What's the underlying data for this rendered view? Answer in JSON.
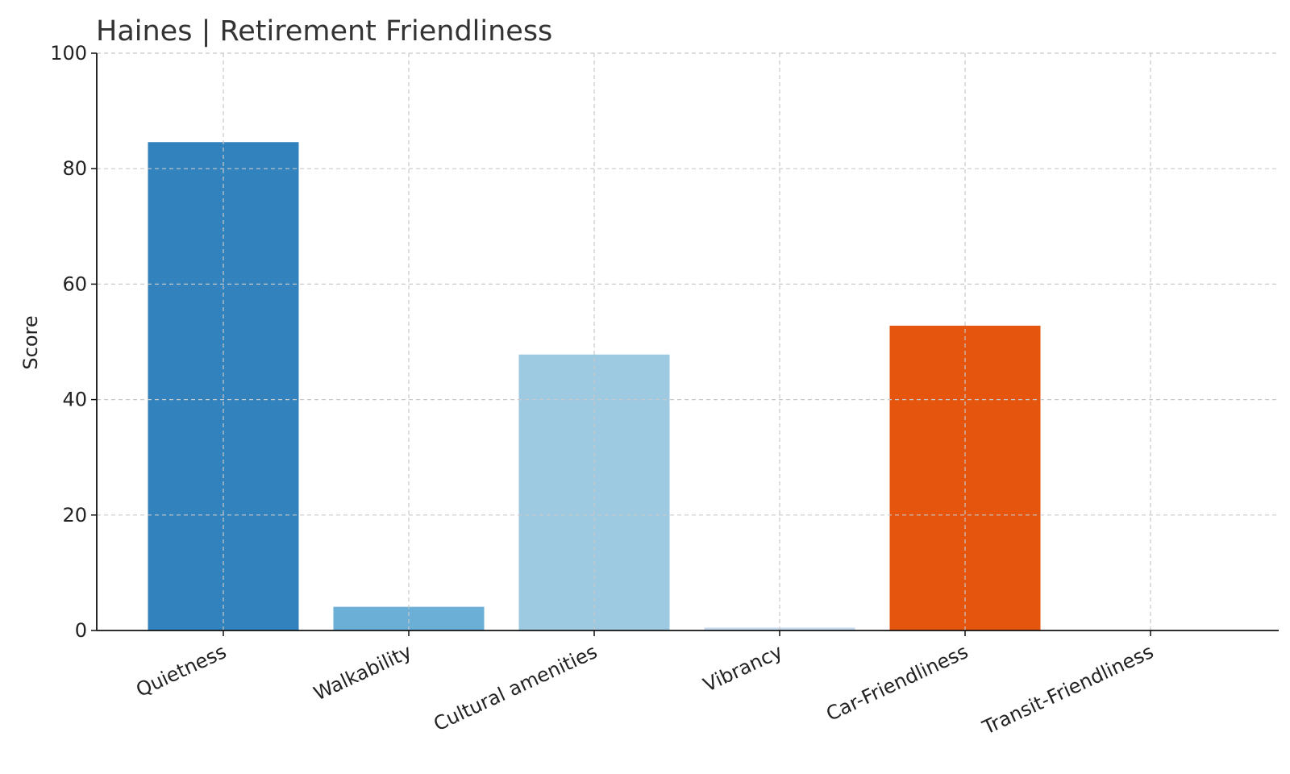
{
  "chart_data": {
    "type": "bar",
    "title": "Haines | Retirement Friendliness",
    "xlabel": "",
    "ylabel": "Score",
    "ylim": [
      0,
      100
    ],
    "yticks": [
      0,
      20,
      40,
      60,
      80,
      100
    ],
    "categories": [
      "Quietness",
      "Walkability",
      "Cultural amenities",
      "Vibrancy",
      "Car-Friendliness",
      "Transit-Friendliness"
    ],
    "values": [
      84.6,
      4.1,
      47.8,
      0.5,
      52.8,
      0
    ],
    "colors": [
      "#3182bd",
      "#6baed6",
      "#9ecae1",
      "#c6dbef",
      "#e6550d",
      "#fdae6b"
    ],
    "grid": true,
    "legend": "none"
  }
}
